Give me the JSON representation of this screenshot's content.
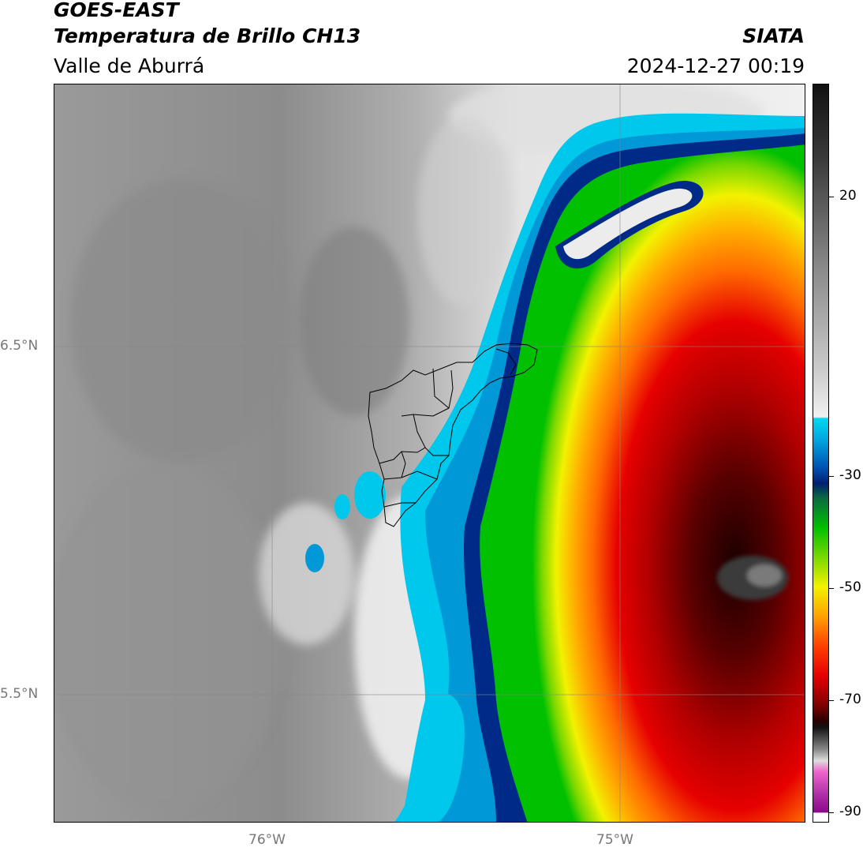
{
  "header": {
    "satellite": "GOES-EAST",
    "product": "Temperatura de Brillo CH13",
    "region": "Valle de Aburrá",
    "organization": "SIATA",
    "timestamp": "2024-12-27 00:19"
  },
  "map": {
    "lat_labels": [
      "6.5°N",
      "5.5°N"
    ],
    "lon_labels": [
      "76°W",
      "75°W"
    ],
    "gridlines": true
  },
  "colorbar": {
    "ticks": [
      "20",
      "-30",
      "-50",
      "-70",
      "-90"
    ],
    "colors": {
      "warm_light": "#f2f2f2",
      "warm_gray": "#8a8a8a",
      "warm_dark": "#1a1a1a",
      "cyan": "#00d8f0",
      "blue": "#0090d0",
      "navy": "#00207a",
      "green": "#00cc00",
      "yellow": "#f2f200",
      "orange": "#ff8c00",
      "red": "#e60000",
      "dark_red": "#5a0000",
      "pink": "#ee66cc",
      "purple": "#8a0a8a"
    }
  }
}
